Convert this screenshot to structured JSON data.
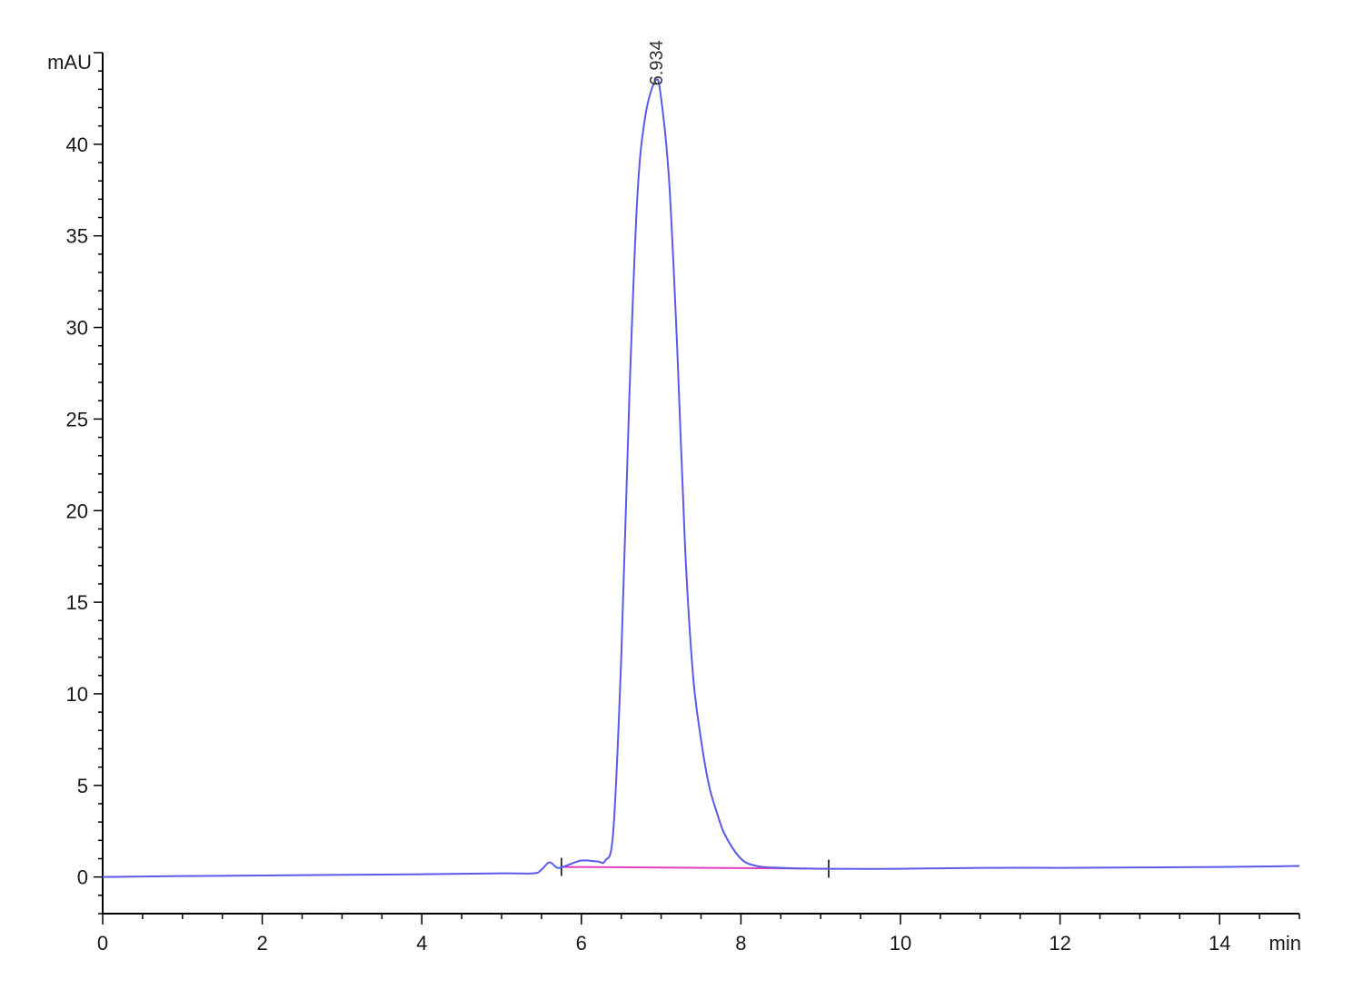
{
  "chart_data": {
    "type": "line",
    "title": "",
    "xlabel": "",
    "ylabel": "",
    "x_unit": "min",
    "y_unit": "mAU",
    "xlim": [
      0,
      15
    ],
    "ylim": [
      -2,
      45
    ],
    "x_ticks": [
      0,
      2,
      4,
      6,
      8,
      10,
      12,
      14
    ],
    "y_ticks": [
      0,
      5,
      10,
      15,
      20,
      25,
      30,
      35,
      40
    ],
    "grid": false,
    "series": [
      {
        "color": "#5a5ae6",
        "x": [
          0,
          1,
          2,
          3,
          4,
          5,
          5.4,
          5.5,
          5.6,
          5.7,
          5.8,
          6.0,
          6.2,
          6.3,
          6.4,
          6.5,
          6.6,
          6.7,
          6.8,
          6.934,
          7.0,
          7.1,
          7.2,
          7.3,
          7.4,
          7.5,
          7.6,
          7.7,
          7.8,
          8.0,
          8.2,
          8.5,
          9,
          10,
          11,
          12,
          13,
          14,
          15
        ],
        "y": [
          0.0,
          0.05,
          0.08,
          0.12,
          0.15,
          0.2,
          0.2,
          0.4,
          0.8,
          0.5,
          0.6,
          0.9,
          0.85,
          0.9,
          2.5,
          12.0,
          26.0,
          37.0,
          41.5,
          43.5,
          42.5,
          38.0,
          29.0,
          18.0,
          11.0,
          7.5,
          5.0,
          3.5,
          2.3,
          1.0,
          0.6,
          0.5,
          0.45,
          0.45,
          0.5,
          0.5,
          0.52,
          0.55,
          0.6
        ]
      }
    ],
    "baseline": {
      "color": "#e040c0",
      "x": [
        5.75,
        9.1
      ],
      "y": [
        0.55,
        0.45
      ],
      "markers_x": [
        5.75,
        9.1
      ]
    },
    "annotations": [
      {
        "text": "6.934",
        "x": 6.934,
        "y": 43.5
      }
    ]
  }
}
